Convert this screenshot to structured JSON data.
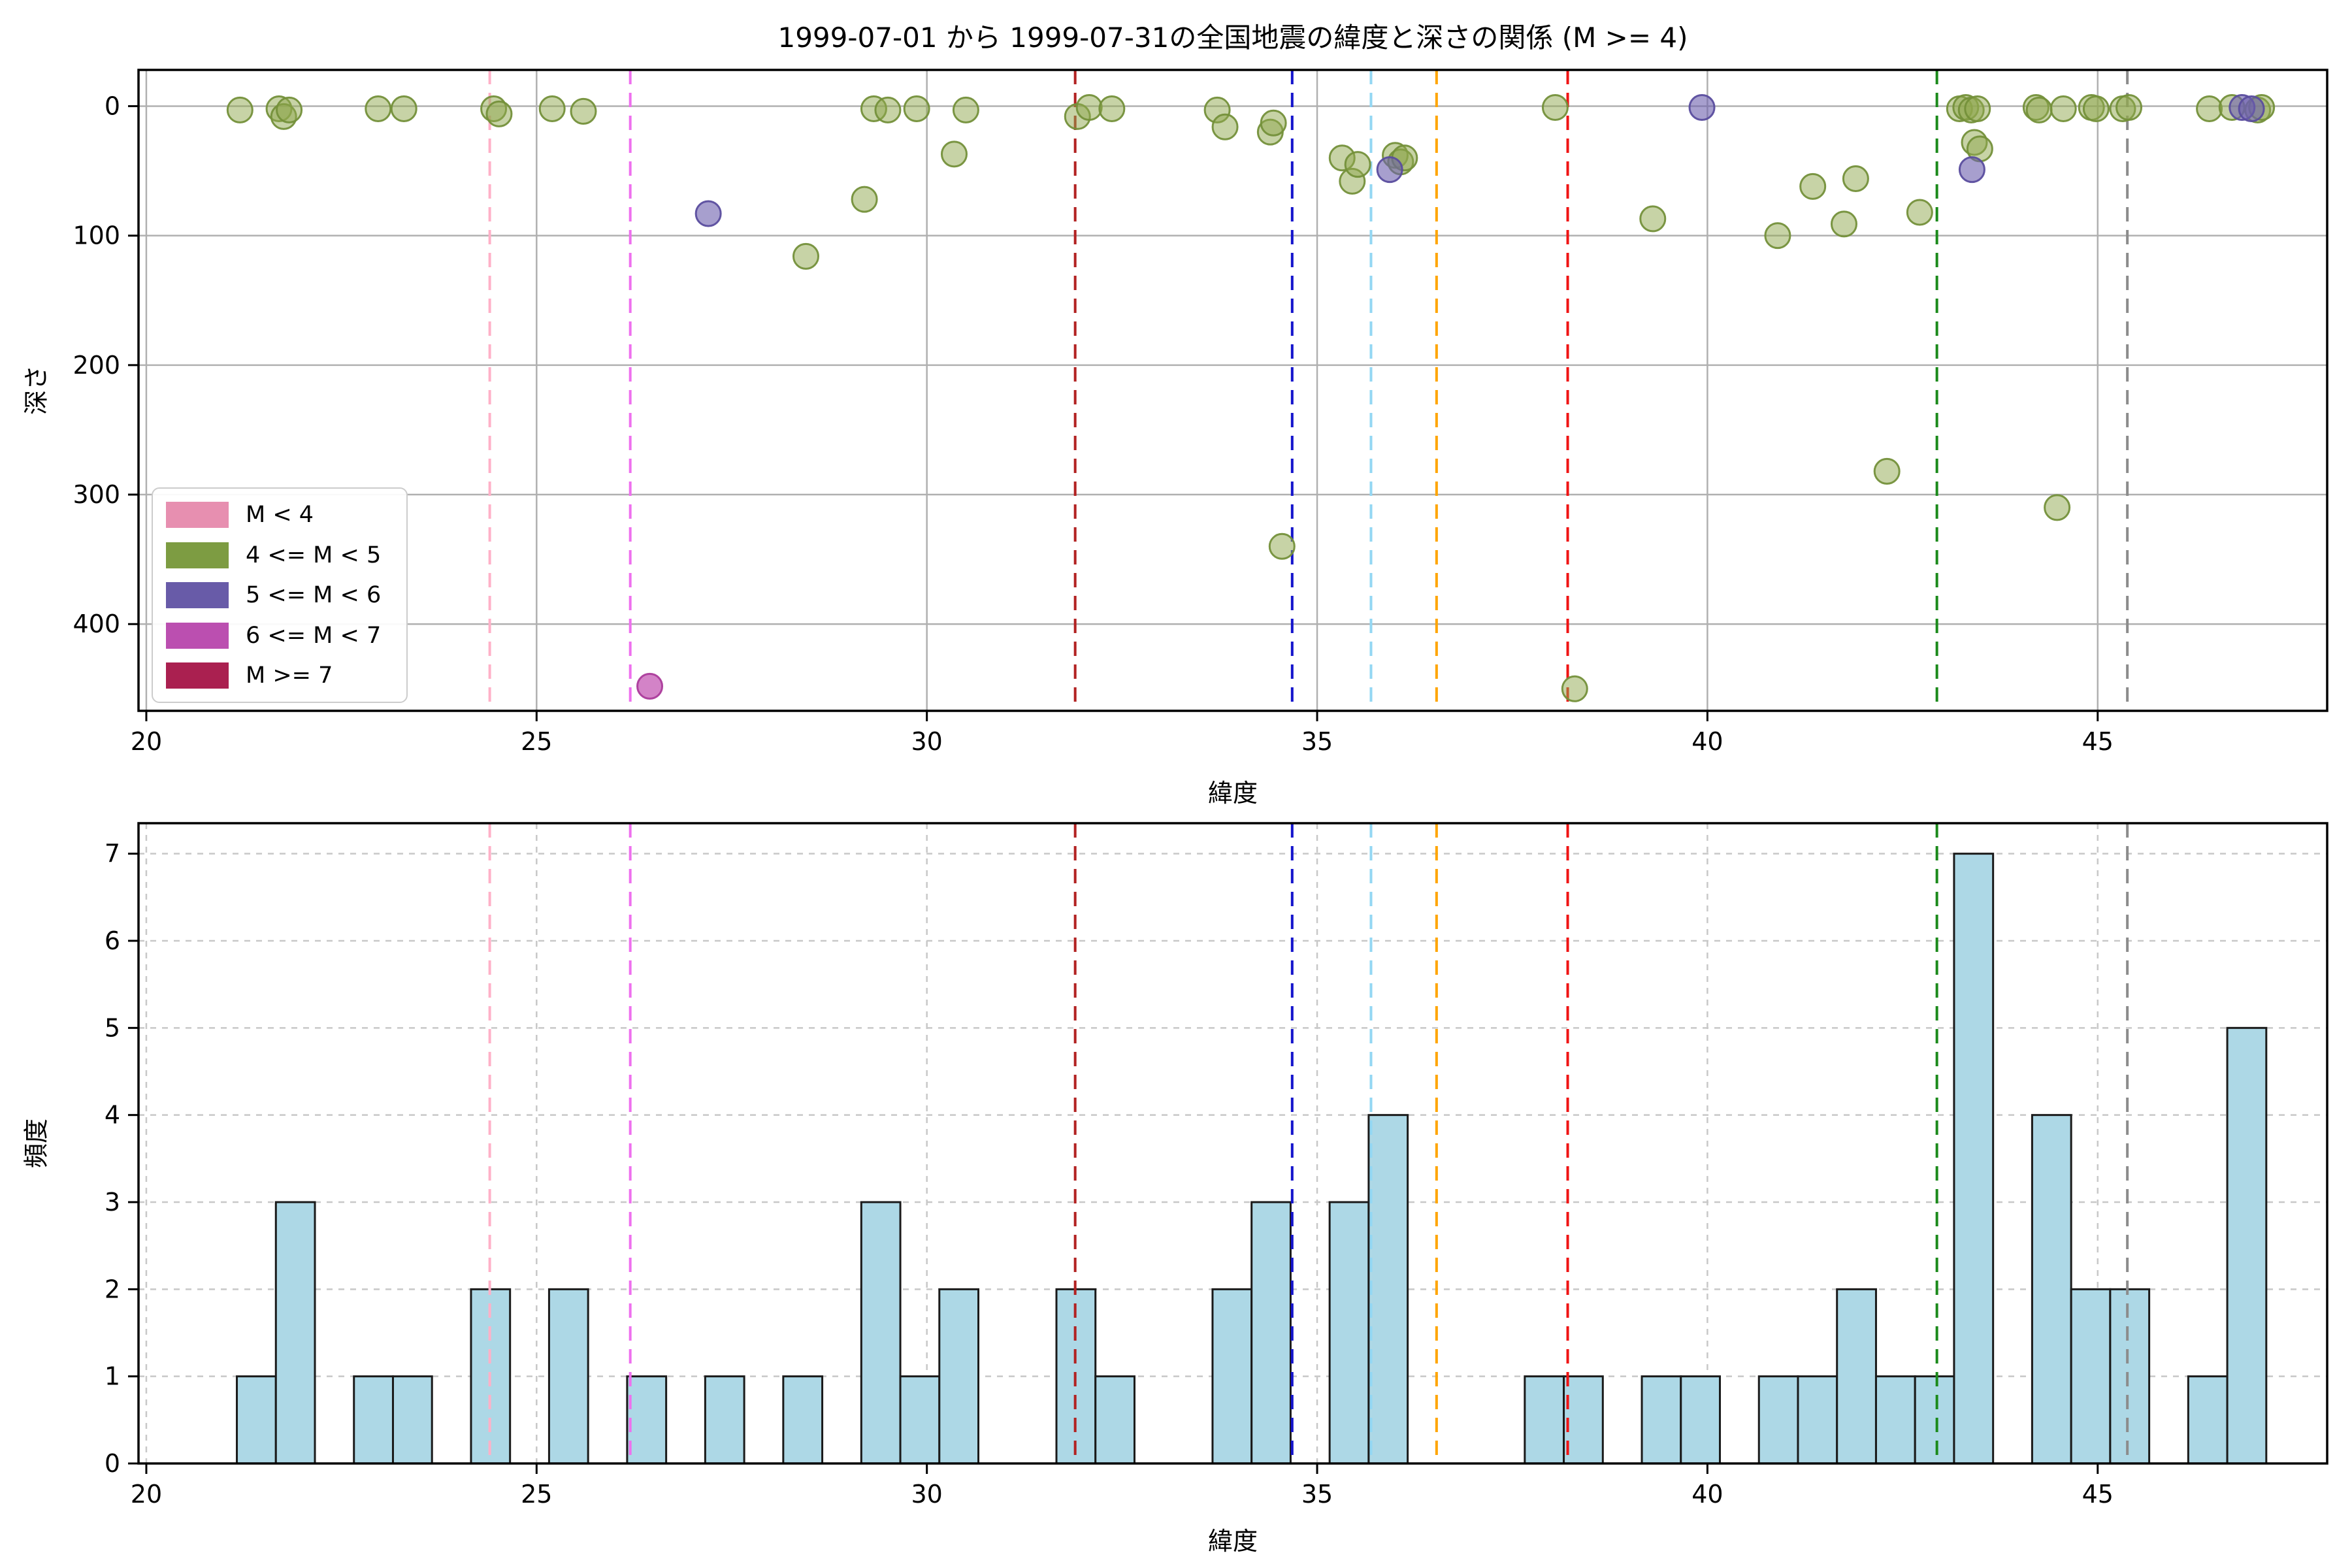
{
  "figure": {
    "title": "1999-07-01 から 1999-07-31の全国地震の緯度と深さの関係 (M >= 4)",
    "background": "#ffffff"
  },
  "legend": {
    "entries": [
      {
        "label": "M < 4",
        "color": "#e78fb0"
      },
      {
        "label": "4 <= M < 5",
        "color": "#7d9c42"
      },
      {
        "label": "5 <= M < 6",
        "color": "#685ba8"
      },
      {
        "label": "6 <= M < 7",
        "color": "#bb4fb0"
      },
      {
        "label": "M >= 7",
        "color": "#aa2050"
      }
    ]
  },
  "vlines": [
    {
      "lat": 24.4,
      "color": "#ffb1c8"
    },
    {
      "lat": 26.2,
      "color": "#ee70ee"
    },
    {
      "lat": 31.9,
      "color": "#b22222"
    },
    {
      "lat": 34.68,
      "color": "#1414cc"
    },
    {
      "lat": 35.69,
      "color": "#93d7f3"
    },
    {
      "lat": 36.53,
      "color": "#ffa500"
    },
    {
      "lat": 38.21,
      "color": "#f01414"
    },
    {
      "lat": 42.94,
      "color": "#1b8a1b"
    },
    {
      "lat": 45.38,
      "color": "#8c8c8c"
    }
  ],
  "chart_data": [
    {
      "type": "scatter",
      "title": "1999-07-01 から 1999-07-31の全国地震の緯度と深さの関係 (M >= 4)",
      "xlabel": "緯度",
      "ylabel": "深さ",
      "xlim": [
        19.9,
        47.94
      ],
      "ylim": [
        -28,
        467
      ],
      "y_inverted_depth_axis": true,
      "xticks": [
        20,
        25,
        30,
        35,
        40,
        45
      ],
      "yticks": [
        0,
        100,
        200,
        300,
        400
      ],
      "grid": "solid",
      "marker_radius_px": 19,
      "series": [
        {
          "name": "M < 4",
          "color": "#e78fb0",
          "fill_opacity": 0.5,
          "points": []
        },
        {
          "name": "4 <= M < 5",
          "color": "#8fa84e",
          "edge": "#74903a",
          "fill_opacity": 0.5,
          "points": [
            [
              21.2,
              3
            ],
            [
              21.7,
              2
            ],
            [
              21.76,
              8
            ],
            [
              21.83,
              3
            ],
            [
              22.97,
              2
            ],
            [
              23.3,
              2
            ],
            [
              24.45,
              2
            ],
            [
              24.52,
              6
            ],
            [
              25.2,
              2
            ],
            [
              25.6,
              4
            ],
            [
              28.45,
              116
            ],
            [
              29.2,
              72
            ],
            [
              29.32,
              2
            ],
            [
              29.5,
              3
            ],
            [
              29.87,
              2
            ],
            [
              30.35,
              37
            ],
            [
              30.5,
              3
            ],
            [
              31.93,
              8
            ],
            [
              32.08,
              1
            ],
            [
              32.37,
              2
            ],
            [
              33.72,
              3
            ],
            [
              33.82,
              16
            ],
            [
              34.4,
              20
            ],
            [
              34.44,
              13
            ],
            [
              34.55,
              340
            ],
            [
              35.32,
              40
            ],
            [
              35.45,
              58
            ],
            [
              35.52,
              45
            ],
            [
              36.0,
              38
            ],
            [
              36.07,
              43
            ],
            [
              36.12,
              40
            ],
            [
              38.05,
              1
            ],
            [
              38.3,
              450
            ],
            [
              39.3,
              87
            ],
            [
              40.9,
              100
            ],
            [
              41.35,
              62
            ],
            [
              41.75,
              91
            ],
            [
              41.9,
              56
            ],
            [
              42.3,
              282
            ],
            [
              42.72,
              82
            ],
            [
              43.23,
              2
            ],
            [
              43.31,
              1
            ],
            [
              43.38,
              3
            ],
            [
              43.46,
              2
            ],
            [
              43.42,
              28
            ],
            [
              43.49,
              33
            ],
            [
              44.21,
              1
            ],
            [
              44.25,
              3
            ],
            [
              44.48,
              310
            ],
            [
              44.56,
              2
            ],
            [
              44.92,
              1
            ],
            [
              44.98,
              2
            ],
            [
              45.32,
              2
            ],
            [
              45.4,
              1
            ],
            [
              46.43,
              2
            ],
            [
              46.72,
              1
            ],
            [
              47.05,
              3
            ],
            [
              47.1,
              1
            ]
          ]
        },
        {
          "name": "5 <= M < 6",
          "color": "#6c5fad",
          "edge": "#5a4d9e",
          "fill_opacity": 0.6,
          "points": [
            [
              27.2,
              83
            ],
            [
              35.93,
              49
            ],
            [
              39.93,
              1
            ],
            [
              43.39,
              49
            ],
            [
              46.85,
              1
            ],
            [
              46.97,
              2
            ]
          ]
        },
        {
          "name": "6 <= M < 7",
          "color": "#c45ab4",
          "edge": "#ab3b9b",
          "fill_opacity": 0.75,
          "points": [
            [
              26.45,
              448
            ]
          ]
        },
        {
          "name": "M >= 7",
          "color": "#aa2050",
          "fill_opacity": 0.75,
          "points": []
        }
      ]
    },
    {
      "type": "histogram",
      "xlabel": "緯度",
      "ylabel": "頻度",
      "xlim": [
        19.9,
        47.94
      ],
      "ylim": [
        0,
        7.35
      ],
      "xticks": [
        20,
        25,
        30,
        35,
        40,
        45
      ],
      "yticks": [
        0,
        1,
        2,
        3,
        4,
        5,
        6,
        7
      ],
      "grid": "dashed",
      "bar_color": "#add8e6",
      "bar_edge": "#1a1a1a",
      "bin_width": 0.5,
      "bins": [
        {
          "start": 21.16,
          "count": 1
        },
        {
          "start": 21.66,
          "count": 3
        },
        {
          "start": 22.66,
          "count": 1
        },
        {
          "start": 23.16,
          "count": 1
        },
        {
          "start": 24.16,
          "count": 2
        },
        {
          "start": 25.16,
          "count": 2
        },
        {
          "start": 26.16,
          "count": 1
        },
        {
          "start": 27.16,
          "count": 1
        },
        {
          "start": 28.16,
          "count": 1
        },
        {
          "start": 29.16,
          "count": 3
        },
        {
          "start": 29.66,
          "count": 1
        },
        {
          "start": 30.16,
          "count": 2
        },
        {
          "start": 31.66,
          "count": 2
        },
        {
          "start": 32.16,
          "count": 1
        },
        {
          "start": 33.66,
          "count": 2
        },
        {
          "start": 34.16,
          "count": 3
        },
        {
          "start": 35.16,
          "count": 3
        },
        {
          "start": 35.66,
          "count": 4
        },
        {
          "start": 37.66,
          "count": 1
        },
        {
          "start": 38.16,
          "count": 1
        },
        {
          "start": 39.16,
          "count": 1
        },
        {
          "start": 39.66,
          "count": 1
        },
        {
          "start": 40.66,
          "count": 1
        },
        {
          "start": 41.16,
          "count": 1
        },
        {
          "start": 41.66,
          "count": 2
        },
        {
          "start": 42.16,
          "count": 1
        },
        {
          "start": 42.66,
          "count": 1
        },
        {
          "start": 43.16,
          "count": 7
        },
        {
          "start": 44.16,
          "count": 4
        },
        {
          "start": 44.66,
          "count": 2
        },
        {
          "start": 45.16,
          "count": 2
        },
        {
          "start": 46.16,
          "count": 1
        },
        {
          "start": 46.66,
          "count": 5
        }
      ]
    }
  ]
}
